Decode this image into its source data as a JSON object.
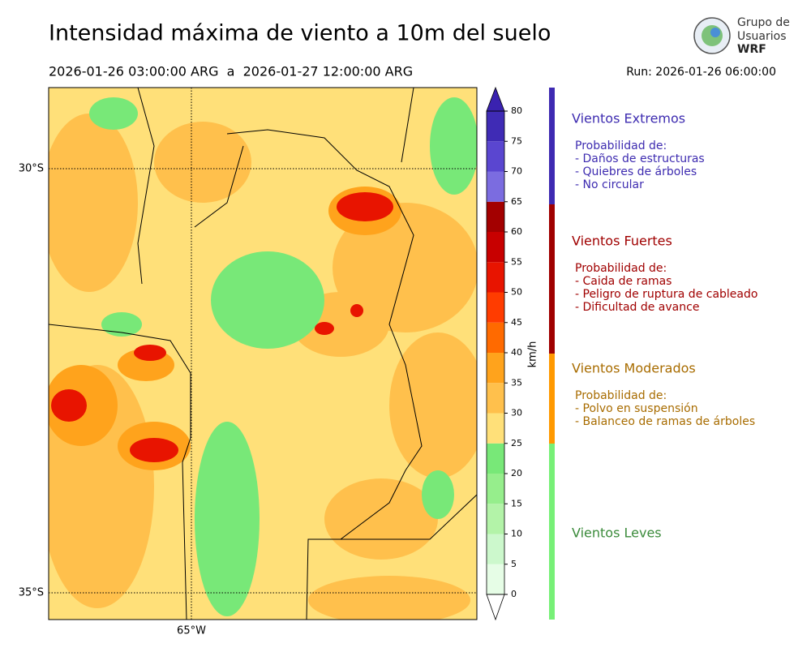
{
  "header": {
    "title": "Intensidad máxima de viento a 10m del suelo",
    "period": "2026-01-26 03:00:00 ARG  a  2026-01-27 12:00:00 ARG",
    "run": "Run: 2026-01-26 06:00:00"
  },
  "logo": {
    "lines": [
      "Grupo de",
      "Usuarios",
      "WRF"
    ]
  },
  "map": {
    "lat_labels": [
      "30°S",
      "35°S"
    ],
    "lon_labels": [
      "65°W"
    ]
  },
  "colorbar": {
    "label": "km/h",
    "ticks": [
      0,
      5,
      10,
      15,
      20,
      25,
      30,
      35,
      40,
      45,
      50,
      55,
      60,
      65,
      70,
      75,
      80
    ],
    "colors": [
      "#e6fde6",
      "#ccf8cc",
      "#b3f3a8",
      "#96ee8c",
      "#78e878",
      "#ffe079",
      "#ffc04c",
      "#ffa31c",
      "#ff6a00",
      "#ff3c00",
      "#e81400",
      "#c80000",
      "#a30000",
      "#7b6ce0",
      "#5a46d0",
      "#3f2bb5"
    ],
    "under_color": "#ffffff",
    "over_color": "#3a22b0"
  },
  "legend": [
    {
      "title": "Vientos Extremos",
      "color": "#3d2bb0",
      "heading": "Probabilidad de:",
      "items": [
        "- Daños de estructuras",
        "- Quiebres de árboles",
        "- No circular"
      ]
    },
    {
      "title": "Vientos Fuertes",
      "color": "#a00000",
      "heading": "Probabilidad de:",
      "items": [
        "- Caida de ramas",
        "- Peligro de ruptura de cableado",
        "- Dificultad de avance"
      ]
    },
    {
      "title": "Vientos Moderados",
      "color": "#a86c00",
      "heading": "Probabilidad de:",
      "items": [
        "- Polvo en suspensión",
        "- Balanceo de ramas de árboles"
      ]
    },
    {
      "title": "Vientos Leves",
      "color": "#3a8a3a"
    }
  ]
}
